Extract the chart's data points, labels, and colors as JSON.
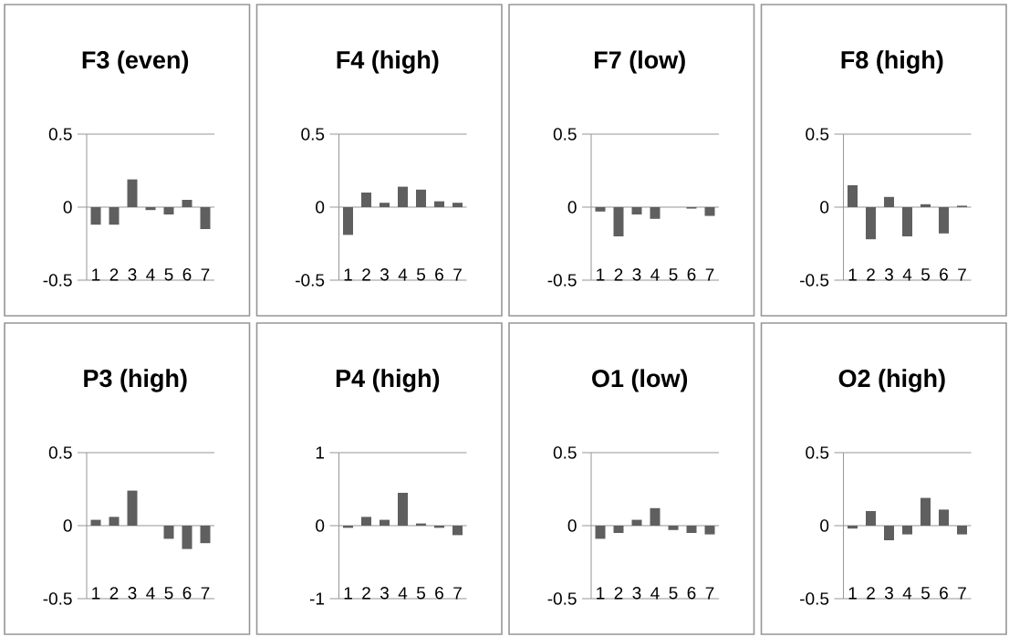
{
  "chart_data": [
    {
      "type": "bar",
      "title": "F3 (even)",
      "categories": [
        "1",
        "2",
        "3",
        "4",
        "5",
        "6",
        "7"
      ],
      "values": [
        -0.12,
        -0.12,
        0.19,
        -0.02,
        -0.05,
        0.05,
        -0.15
      ],
      "color": "#5f5f5f",
      "ylim": [
        -0.5,
        0.5
      ],
      "yticks": [
        -0.5,
        0,
        0.5
      ],
      "grid": "y"
    },
    {
      "type": "bar",
      "title": "F4 (high)",
      "categories": [
        "1",
        "2",
        "3",
        "4",
        "5",
        "6",
        "7"
      ],
      "values": [
        -0.19,
        0.1,
        0.03,
        0.14,
        0.12,
        0.04,
        0.03
      ],
      "color": "#5f5f5f",
      "ylim": [
        -0.5,
        0.5
      ],
      "yticks": [
        -0.5,
        0,
        0.5
      ],
      "grid": "y"
    },
    {
      "type": "bar",
      "title": "F7 (low)",
      "categories": [
        "1",
        "2",
        "3",
        "4",
        "5",
        "6",
        "7"
      ],
      "values": [
        -0.03,
        -0.2,
        -0.05,
        -0.08,
        0,
        -0.01,
        -0.06
      ],
      "color": "#5f5f5f",
      "ylim": [
        -0.5,
        0.5
      ],
      "yticks": [
        -0.5,
        0,
        0.5
      ],
      "grid": "y"
    },
    {
      "type": "bar",
      "title": "F8 (high)",
      "categories": [
        "1",
        "2",
        "3",
        "4",
        "5",
        "6",
        "7"
      ],
      "values": [
        0.15,
        -0.22,
        0.07,
        -0.2,
        0.02,
        -0.18,
        0.01
      ],
      "color": "#5f5f5f",
      "ylim": [
        -0.5,
        0.5
      ],
      "yticks": [
        -0.5,
        0,
        0.5
      ],
      "grid": "y"
    },
    {
      "type": "bar",
      "title": "P3 (high)",
      "categories": [
        "1",
        "2",
        "3",
        "4",
        "5",
        "6",
        "7"
      ],
      "values": [
        0.04,
        0.06,
        0.24,
        0,
        -0.09,
        -0.16,
        -0.12
      ],
      "color": "#5f5f5f",
      "ylim": [
        -0.5,
        0.5
      ],
      "yticks": [
        -0.5,
        0,
        0.5
      ],
      "grid": "y"
    },
    {
      "type": "bar",
      "title": "P4 (high)",
      "categories": [
        "1",
        "2",
        "3",
        "4",
        "5",
        "6",
        "7"
      ],
      "values": [
        -0.03,
        0.12,
        0.08,
        0.45,
        0.03,
        -0.03,
        -0.13
      ],
      "color": "#5f5f5f",
      "ylim": [
        -1,
        1
      ],
      "yticks": [
        -1,
        0,
        1
      ],
      "grid": "y"
    },
    {
      "type": "bar",
      "title": "O1 (low)",
      "categories": [
        "1",
        "2",
        "3",
        "4",
        "5",
        "6",
        "7"
      ],
      "values": [
        -0.09,
        -0.05,
        0.04,
        0.12,
        -0.03,
        -0.05,
        -0.06
      ],
      "color": "#5f5f5f",
      "ylim": [
        -0.5,
        0.5
      ],
      "yticks": [
        -0.5,
        0,
        0.5
      ],
      "grid": "y"
    },
    {
      "type": "bar",
      "title": "O2 (high)",
      "categories": [
        "1",
        "2",
        "3",
        "4",
        "5",
        "6",
        "7"
      ],
      "values": [
        -0.02,
        0.1,
        -0.1,
        -0.06,
        0.19,
        0.11,
        -0.06
      ],
      "color": "#5f5f5f",
      "ylim": [
        -0.5,
        0.5
      ],
      "yticks": [
        -0.5,
        0,
        0.5
      ],
      "grid": "y"
    }
  ]
}
